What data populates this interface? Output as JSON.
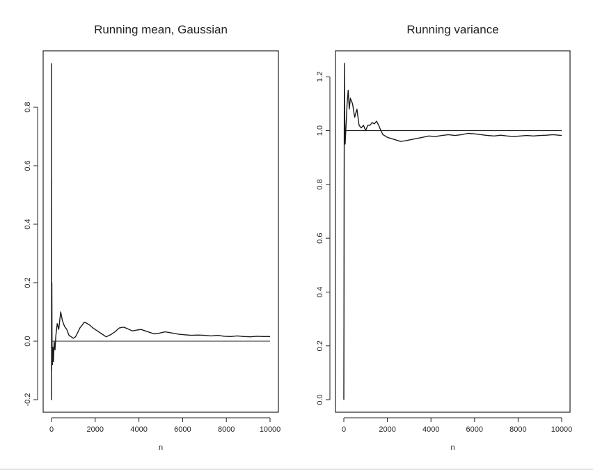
{
  "chart_data": [
    {
      "type": "line",
      "title": "Running mean,  Gaussian",
      "xlabel": "n",
      "ylabel": "",
      "xlim": [
        0,
        10000
      ],
      "ylim": [
        -0.2,
        0.95
      ],
      "xticks": [
        0,
        2000,
        4000,
        6000,
        8000,
        10000
      ],
      "yticks": [
        -0.2,
        0.0,
        0.2,
        0.4,
        0.6,
        0.8
      ],
      "xtick_labels": [
        "0",
        "2000",
        "4000",
        "6000",
        "8000",
        "10000"
      ],
      "ytick_labels": [
        "-0.2",
        "0.0",
        "0.2",
        "0.4",
        "0.6",
        "0.8"
      ],
      "reference_line": 0.0,
      "grid": false,
      "series": [
        {
          "x": [
            1,
            2,
            4,
            8,
            15,
            25,
            40,
            60,
            90,
            120,
            160,
            200,
            260,
            330,
            420,
            500,
            600,
            700,
            800,
            900,
            1000,
            1100,
            1200,
            1300,
            1400,
            1500,
            1600,
            1750,
            1900,
            2100,
            2300,
            2500,
            2700,
            2900,
            3100,
            3300,
            3500,
            3700,
            3900,
            4100,
            4300,
            4500,
            4700,
            4900,
            5200,
            5500,
            5800,
            6100,
            6400,
            6700,
            7000,
            7300,
            7600,
            7900,
            8200,
            8500,
            8800,
            9100,
            9400,
            9700,
            10000
          ],
          "y": [
            0.95,
            -0.2,
            0.55,
            -0.1,
            0.2,
            -0.05,
            -0.08,
            -0.02,
            -0.07,
            0.0,
            -0.03,
            0.02,
            0.06,
            0.04,
            0.1,
            0.07,
            0.05,
            0.04,
            0.02,
            0.015,
            0.01,
            0.015,
            0.03,
            0.045,
            0.055,
            0.065,
            0.062,
            0.055,
            0.045,
            0.035,
            0.025,
            0.015,
            0.022,
            0.032,
            0.045,
            0.048,
            0.042,
            0.035,
            0.038,
            0.04,
            0.035,
            0.03,
            0.025,
            0.027,
            0.032,
            0.028,
            0.024,
            0.022,
            0.02,
            0.021,
            0.02,
            0.018,
            0.02,
            0.017,
            0.016,
            0.018,
            0.016,
            0.015,
            0.017,
            0.016,
            0.016
          ]
        }
      ]
    },
    {
      "type": "line",
      "title": "Running variance",
      "xlabel": "n",
      "ylabel": "",
      "xlim": [
        0,
        10000
      ],
      "ylim": [
        0.0,
        1.25
      ],
      "xticks": [
        0,
        2000,
        4000,
        6000,
        8000,
        10000
      ],
      "yticks": [
        0.0,
        0.2,
        0.4,
        0.6,
        0.8,
        1.0,
        1.2
      ],
      "xtick_labels": [
        "0",
        "2000",
        "4000",
        "6000",
        "8000",
        "10000"
      ],
      "ytick_labels": [
        "0.0",
        "0.2",
        "0.4",
        "0.6",
        "0.8",
        "1.0",
        "1.2"
      ],
      "reference_line": 1.0,
      "grid": false,
      "series": [
        {
          "x": [
            1,
            5,
            12,
            25,
            40,
            60,
            90,
            120,
            150,
            200,
            250,
            300,
            400,
            500,
            600,
            700,
            800,
            900,
            1000,
            1100,
            1200,
            1300,
            1400,
            1500,
            1600,
            1700,
            1800,
            2000,
            2200,
            2400,
            2600,
            2800,
            3000,
            3300,
            3600,
            3900,
            4200,
            4500,
            4800,
            5100,
            5400,
            5700,
            6000,
            6300,
            6600,
            6900,
            7200,
            7500,
            7800,
            8100,
            8400,
            8700,
            9000,
            9300,
            9600,
            10000
          ],
          "y": [
            0.0,
            0.3,
            0.75,
            1.25,
            1.05,
            0.95,
            1.0,
            1.05,
            1.1,
            1.15,
            1.08,
            1.12,
            1.1,
            1.05,
            1.08,
            1.02,
            1.01,
            1.02,
            1.0,
            1.02,
            1.02,
            1.03,
            1.025,
            1.035,
            1.02,
            1.0,
            0.985,
            0.975,
            0.97,
            0.965,
            0.96,
            0.962,
            0.965,
            0.97,
            0.975,
            0.98,
            0.978,
            0.982,
            0.985,
            0.982,
            0.985,
            0.99,
            0.988,
            0.985,
            0.982,
            0.98,
            0.983,
            0.98,
            0.978,
            0.98,
            0.982,
            0.98,
            0.982,
            0.983,
            0.985,
            0.982
          ]
        }
      ]
    }
  ]
}
